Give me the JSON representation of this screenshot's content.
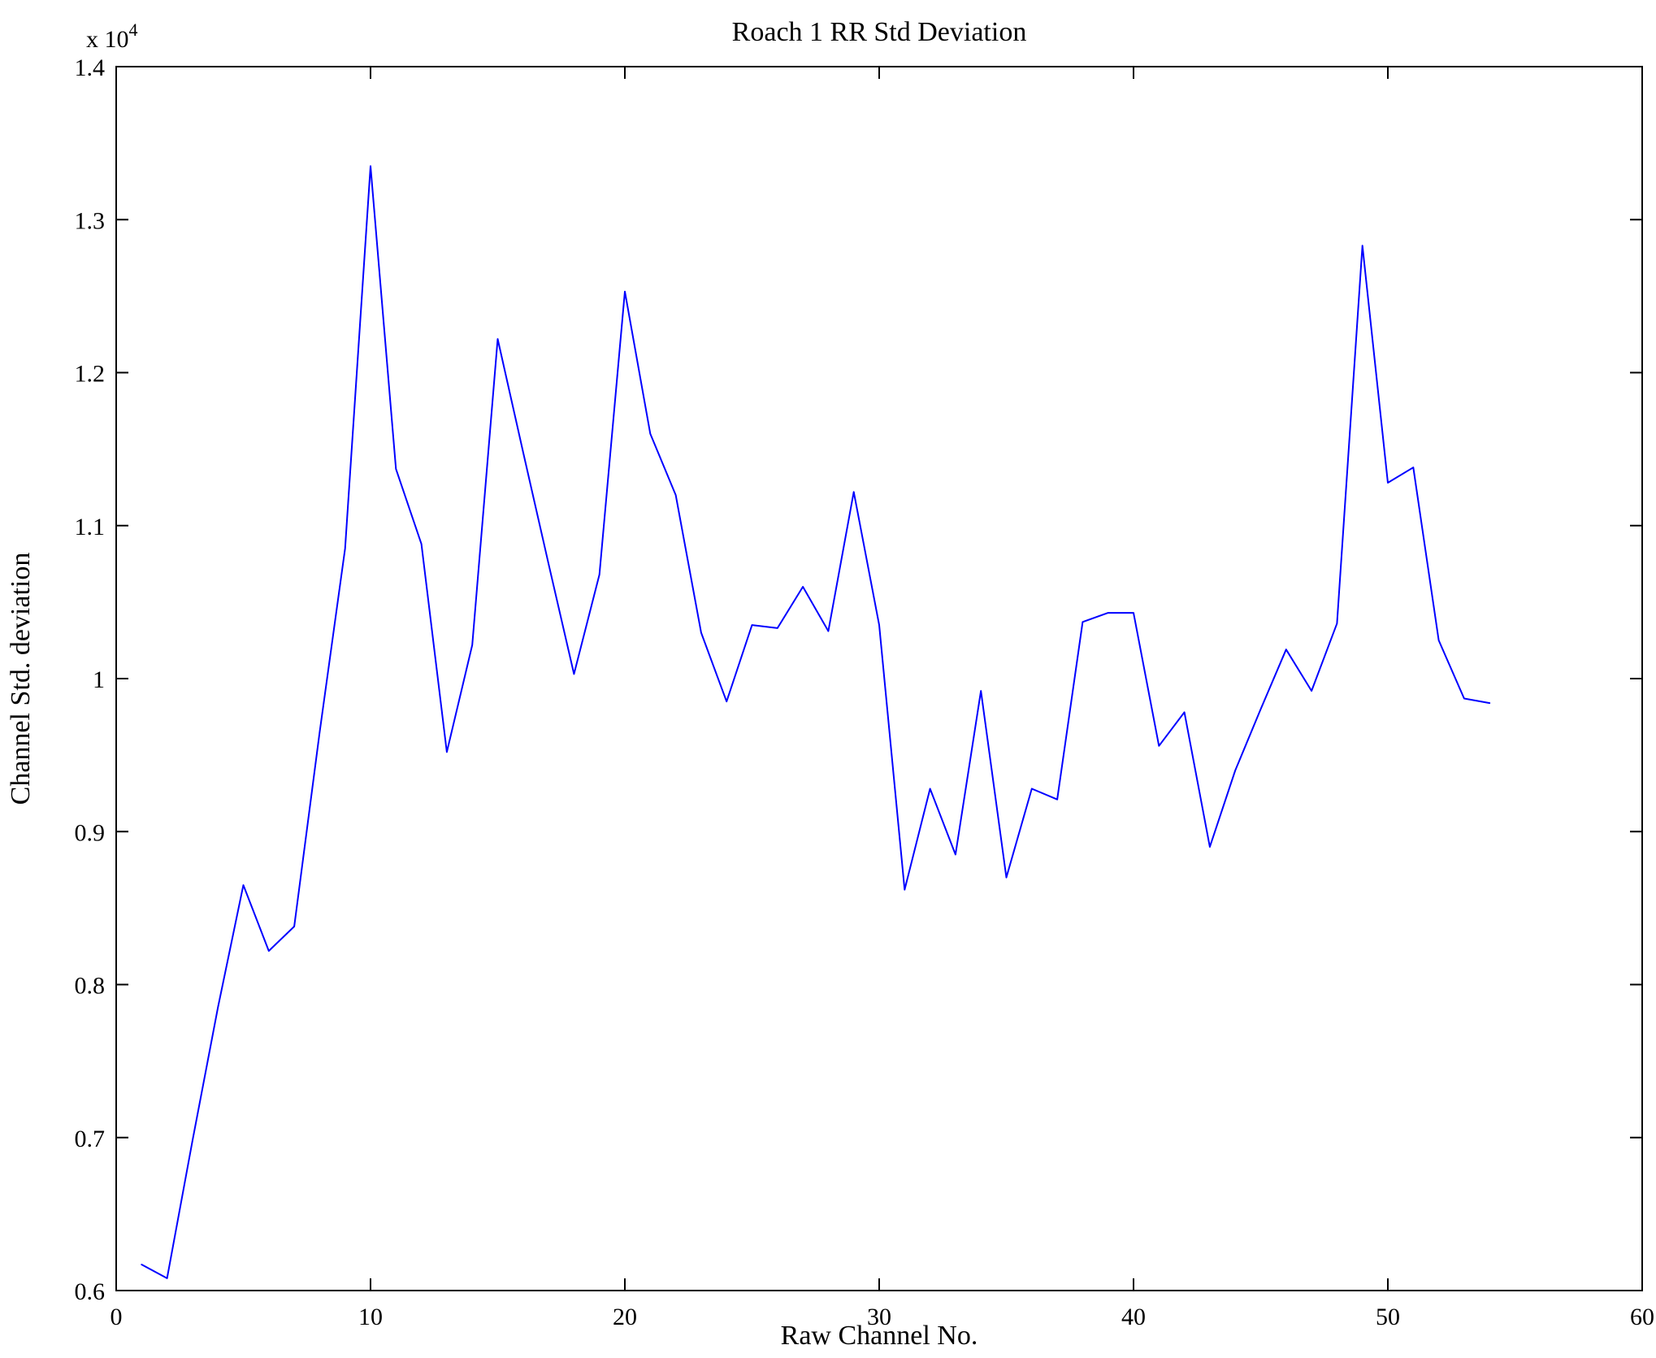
{
  "page": {
    "background": "#ffffff"
  },
  "chart_data": {
    "type": "line",
    "title": "Roach 1 RR Std Deviation",
    "xlabel": "Raw Channel No.",
    "ylabel": "Channel Std. deviation",
    "y_multiplier_label": "x 10",
    "y_multiplier_exponent": "4",
    "y_units": "x10^4",
    "xlim": [
      0,
      60
    ],
    "ylim": [
      0.6,
      1.4
    ],
    "x_ticks": [
      0,
      10,
      20,
      30,
      40,
      50,
      60
    ],
    "x_tick_labels": [
      "0",
      "10",
      "20",
      "30",
      "40",
      "50",
      "60"
    ],
    "y_ticks": [
      0.6,
      0.7,
      0.8,
      0.9,
      1.0,
      1.1,
      1.2,
      1.3,
      1.4
    ],
    "y_tick_labels": [
      "0.6",
      "0.7",
      "0.8",
      "0.9",
      "1",
      "1.1",
      "1.2",
      "1.3",
      "1.4"
    ],
    "grid": false,
    "legend": "none",
    "line_color": "#0000ff",
    "axis_color": "#000000",
    "series": [
      {
        "name": "Channel Std. deviation (x10^4)",
        "x": [
          1,
          2,
          3,
          4,
          5,
          6,
          7,
          8,
          9,
          10,
          11,
          12,
          13,
          14,
          15,
          16,
          17,
          18,
          19,
          20,
          21,
          22,
          23,
          24,
          25,
          26,
          27,
          28,
          29,
          30,
          31,
          32,
          33,
          34,
          35,
          36,
          37,
          38,
          39,
          40,
          41,
          42,
          43,
          44,
          45,
          46,
          47,
          48,
          49,
          50,
          51,
          52,
          53,
          54
        ],
        "y": [
          0.617,
          0.608,
          0.698,
          0.785,
          0.865,
          0.822,
          0.838,
          0.965,
          1.085,
          1.335,
          1.137,
          1.088,
          0.952,
          1.022,
          1.222,
          1.148,
          1.075,
          1.003,
          1.068,
          1.253,
          1.16,
          1.12,
          1.03,
          0.985,
          1.035,
          1.033,
          1.06,
          1.031,
          1.122,
          1.035,
          0.862,
          0.928,
          0.885,
          0.992,
          0.87,
          0.928,
          0.921,
          1.037,
          1.043,
          1.043,
          0.956,
          0.978,
          0.89,
          0.94,
          0.98,
          1.019,
          0.992,
          1.036,
          1.283,
          1.128,
          1.138,
          1.025,
          0.987,
          0.984
        ]
      }
    ]
  }
}
